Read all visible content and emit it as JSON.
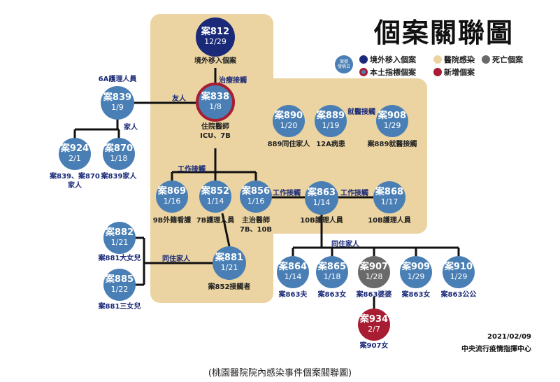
{
  "title": "個案關聯圖",
  "legend": {
    "key_line1": "案號",
    "key_line2": "發病日",
    "imported": "境外移入個案",
    "hospital": "醫院感染",
    "death": "死亡個案",
    "local_index": "本土指標個案",
    "new_case": "新增個案",
    "colors": {
      "case": "#4a7fb5",
      "imported": "#1b2a78",
      "hospital": "#ebd4a1",
      "death": "#6a6a6a",
      "new_case": "#a81d32"
    }
  },
  "cases": {
    "c812": {
      "id": "案812",
      "date": "12/29",
      "label": "境外移入個案"
    },
    "c838": {
      "id": "案838",
      "date": "1/8",
      "label_line1": "住院醫師",
      "label_line2": "ICU、7B"
    },
    "c839": {
      "id": "案839",
      "date": "1/9",
      "label": "6A護理人員"
    },
    "c924": {
      "id": "案924",
      "date": "2/1",
      "label_line1": "案839、案870",
      "label_line2": "家人"
    },
    "c870": {
      "id": "案870",
      "date": "1/18",
      "label": "案839家人"
    },
    "c890": {
      "id": "案890",
      "date": "1/20",
      "label": "889同住家人"
    },
    "c889": {
      "id": "案889",
      "date": "1/19",
      "label": "12A病患"
    },
    "c908": {
      "id": "案908",
      "date": "1/29",
      "label": "案889就醫接觸"
    },
    "c869": {
      "id": "案869",
      "date": "1/16",
      "label": "9B外籍看護"
    },
    "c852": {
      "id": "案852",
      "date": "1/14",
      "label": "7B護理人員"
    },
    "c856": {
      "id": "案856",
      "date": "1/16",
      "label_line1": "主治醫師",
      "label_line2": "7B、10B"
    },
    "c863": {
      "id": "案863",
      "date": "1/14",
      "label": "10B護理人員"
    },
    "c868": {
      "id": "案868",
      "date": "1/17",
      "label": "10B護理人員"
    },
    "c882": {
      "id": "案882",
      "date": "1/21",
      "label": "案881大女兒"
    },
    "c885": {
      "id": "案885",
      "date": "1/22",
      "label": "案881三女兒"
    },
    "c881": {
      "id": "案881",
      "date": "1/21",
      "label": "案852接觸者"
    },
    "c864": {
      "id": "案864",
      "date": "1/14",
      "label": "案863夫"
    },
    "c865": {
      "id": "案865",
      "date": "1/18",
      "label": "案863女"
    },
    "c907": {
      "id": "案907",
      "date": "1/28",
      "label": "案863婆婆"
    },
    "c909": {
      "id": "案909",
      "date": "1/29",
      "label": "案863女"
    },
    "c910": {
      "id": "案910",
      "date": "1/29",
      "label": "案863公公"
    },
    "c934": {
      "id": "案934",
      "date": "2/7",
      "label": "案907女"
    }
  },
  "edges": {
    "treatment": "治療接觸",
    "friend": "友人",
    "family": "家人",
    "medical_contact": "就醫接觸",
    "work_contact": "工作接觸",
    "work_contact_2": "工作接觸",
    "work_contact_3": "工作接觸",
    "cohabiting": "同住家人",
    "cohabiting_2": "同住家人"
  },
  "footer": {
    "date": "2021/02/09",
    "agency": "中央流行疫情指揮中心"
  },
  "caption": "(桃園醫院院內感染事件個案關聯圖)"
}
